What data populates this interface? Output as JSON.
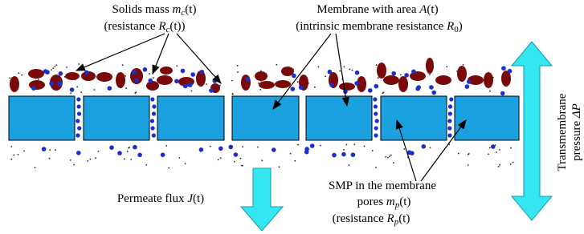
{
  "labels": {
    "solids": {
      "line1": [
        "Solids mass ",
        "m",
        "c",
        "(t)"
      ],
      "line2": [
        "(resistance ",
        "R",
        "c",
        "(t))"
      ]
    },
    "membrane": {
      "line1": [
        "Membrane with area ",
        "A",
        "(t)"
      ],
      "line2": [
        "(intrinsic membrane resistance ",
        "R",
        "0",
        ")"
      ]
    },
    "pressure": {
      "line1": "Transmembrane",
      "line2": [
        "pressure ",
        "ΔP"
      ]
    },
    "flux": [
      "Permeate flux ",
      "J",
      "(t)"
    ],
    "smp": {
      "line1": "SMP in the membrane",
      "line2": [
        "pores ",
        "m",
        "p",
        "(t)"
      ],
      "line3": [
        "(resistance ",
        "R",
        "p",
        "(t)"
      ]
    }
  }
}
